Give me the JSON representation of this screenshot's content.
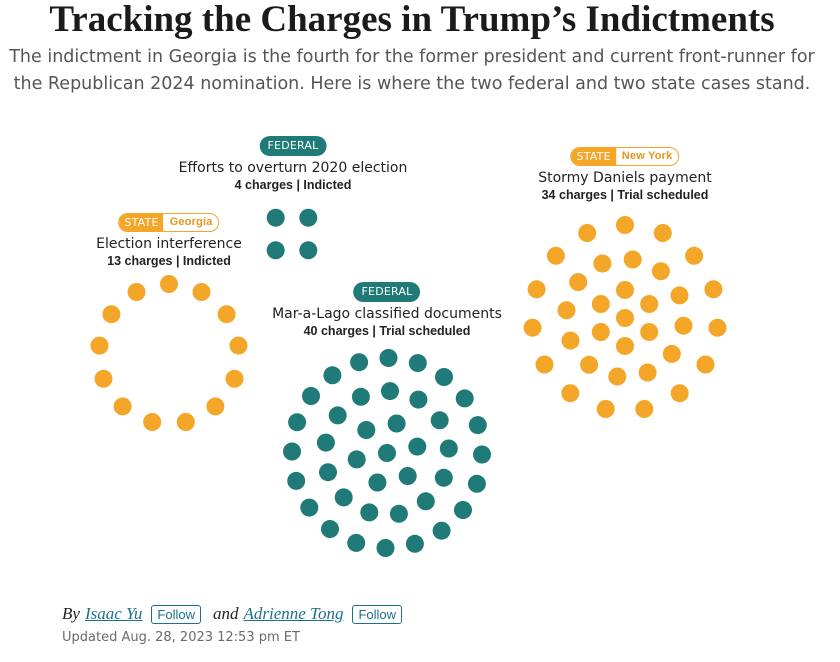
{
  "headline": "Tracking the Charges in Trump’s Indictments",
  "dek": "The indictment in Georgia is the fourth for the former president and current front-runner for the Republican 2024 nomination. Here is where the two federal and two state cases stand.",
  "colors": {
    "federal": "#1f7a78",
    "state": "#f4a629"
  },
  "chart_data": {
    "type": "other",
    "encoding": "one dot per charge",
    "cases": [
      {
        "id": "jan6",
        "jurisdiction": "FEDERAL",
        "location": "",
        "title": "Efforts to overturn 2020 election",
        "charges": 4,
        "status": "Indicted",
        "subtitle": "4 charges | Indicted"
      },
      {
        "id": "georgia",
        "jurisdiction": "STATE",
        "location": "Georgia",
        "title": "Election interference",
        "charges": 13,
        "status": "Indicted",
        "subtitle": "13 charges | Indicted"
      },
      {
        "id": "maralago",
        "jurisdiction": "FEDERAL",
        "location": "",
        "title": "Mar-a-Lago classified documents",
        "charges": 40,
        "status": "Trial scheduled",
        "subtitle": "40 charges | Trial scheduled"
      },
      {
        "id": "newyork",
        "jurisdiction": "STATE",
        "location": "New York",
        "title": "Stormy Daniels payment",
        "charges": 34,
        "status": "Trial scheduled",
        "subtitle": "34 charges | Trial scheduled"
      }
    ]
  },
  "byline": {
    "prefix": "By",
    "authors": [
      {
        "name": "Isaac Yu",
        "follow": "Follow"
      },
      {
        "name": "Adrienne Tong",
        "follow": "Follow"
      }
    ],
    "conjunction": "and"
  },
  "updated": "Updated Aug. 28, 2023 12:53 pm ET"
}
